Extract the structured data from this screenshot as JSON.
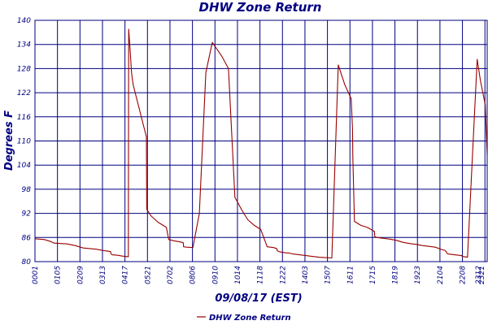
{
  "chart_data": {
    "type": "line",
    "title": "DHW Zone Return",
    "xlabel": "09/08/17 (EST)",
    "ylabel": "Degrees F",
    "ylim": [
      80,
      140
    ],
    "xlim": [
      1,
      1401
    ],
    "yticks": [
      80,
      86,
      92,
      98,
      104,
      110,
      116,
      122,
      128,
      134,
      140
    ],
    "xtick_labels": [
      "0001",
      "0105",
      "0209",
      "0313",
      "0417",
      "0521",
      "0702",
      "0806",
      "0910",
      "1014",
      "1118",
      "1222",
      "1403",
      "1507",
      "1611",
      "1715",
      "1819",
      "1923",
      "2104",
      "2208",
      "2312",
      "2321"
    ],
    "grid": true,
    "line_color": "#990000",
    "grid_color": "#000080",
    "legend_position": "bottom-center",
    "series": [
      {
        "name": "DHW Zone Return",
        "x": [
          1,
          30,
          50,
          60,
          100,
          125,
          150,
          190,
          216,
          235,
          236,
          240,
          255,
          270,
          280,
          290,
          291,
          296,
          300,
          305,
          330,
          346,
          347,
          360,
          382,
          408,
          415,
          430,
          450,
          460,
          461,
          470,
          490,
          510,
          530,
          550,
          580,
          600,
          620,
          640,
          660,
          680,
          700,
          720,
          740,
          750,
          751,
          760,
          775,
          790,
          800,
          820,
          830,
          840,
          860,
          880,
          900,
          920,
          940,
          960,
          980,
          984,
          985,
          990,
          1010,
          1030,
          1052,
          1053,
          1060,
          1080,
          1100,
          1120,
          1140,
          1160,
          1180,
          1200,
          1220,
          1240,
          1260,
          1270,
          1275,
          1276,
          1280,
          1300,
          1322,
          1324,
          1340,
          1370,
          1380,
          1395,
          1401
        ],
        "y": [
          85.7,
          85.5,
          85.0,
          84.6,
          84.4,
          84.0,
          83.4,
          83.1,
          82.7,
          82.5,
          82.0,
          81.7,
          81.6,
          81.4,
          81.3,
          81.2,
          137.8,
          132.0,
          127.0,
          124.0,
          116.0,
          111.0,
          93.0,
          91.4,
          89.8,
          88.5,
          85.5,
          85.2,
          84.9,
          84.7,
          83.7,
          83.6,
          83.5,
          92.0,
          127.0,
          134.5,
          131.0,
          128.0,
          96.0,
          93.0,
          90.4,
          89.0,
          88.0,
          83.7,
          83.5,
          83.2,
          82.7,
          82.4,
          82.2,
          82.1,
          81.9,
          81.7,
          81.6,
          81.5,
          81.3,
          81.1,
          81.0,
          80.9,
          128.9,
          124.0,
          120.5,
          113.0,
          106.0,
          90.0,
          89.0,
          88.5,
          87.5,
          86.2,
          86.0,
          85.8,
          85.6,
          85.3,
          84.8,
          84.5,
          84.3,
          84.0,
          83.8,
          83.6,
          83.0,
          82.8,
          82.4,
          82.1,
          81.9,
          81.7,
          81.5,
          81.3,
          81.1,
          130.3,
          125.0,
          119.0,
          106.5
        ]
      }
    ]
  }
}
